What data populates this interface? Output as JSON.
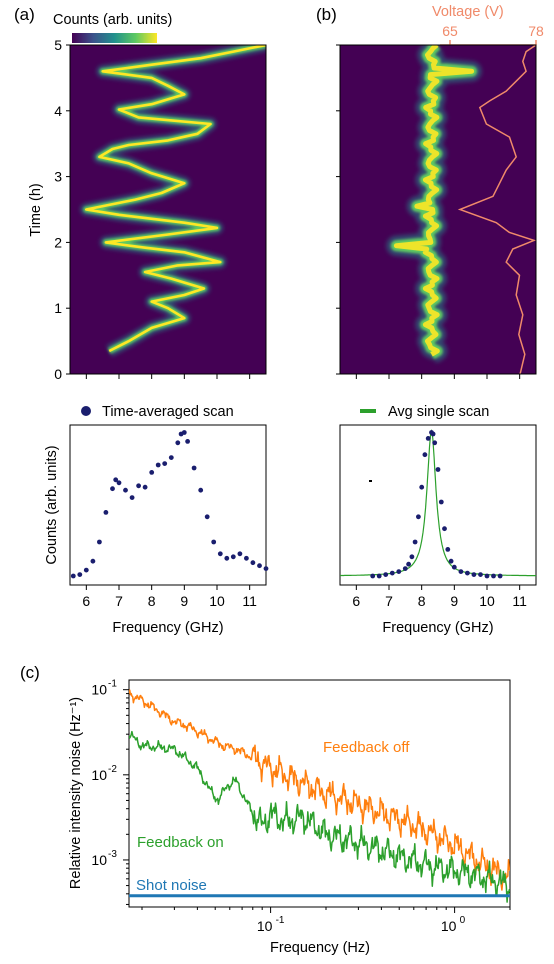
{
  "panels": {
    "a": "(a)",
    "b": "(b)",
    "c": "(c)"
  },
  "colors": {
    "marker": "#1a1e6e",
    "fit": "#2ca02c",
    "voltage": "#f08a6a",
    "feedback_off": "#ff7f0e",
    "feedback_on": "#2ca02c",
    "shot_noise": "#1f77b4",
    "viridis_dark": "#440154",
    "viridis_teal": "#21918c",
    "viridis_green": "#5ec962",
    "viridis_yellow": "#fde725"
  },
  "chart_data": [
    {
      "id": "a-top",
      "type": "heatmap",
      "colorbar_label": "Counts (arb. units)",
      "ylabel": "Time (h)",
      "ylim": [
        0,
        5
      ],
      "yticks": [
        "0",
        "1",
        "2",
        "3",
        "4",
        "5"
      ],
      "xlim": [
        5.5,
        11.5
      ],
      "trace_freq_vs_time": [
        [
          0.35,
          6.7
        ],
        [
          0.5,
          7.3
        ],
        [
          0.7,
          8.0
        ],
        [
          0.85,
          9.0
        ],
        [
          1.0,
          8.5
        ],
        [
          1.1,
          8.0
        ],
        [
          1.2,
          9.0
        ],
        [
          1.3,
          9.6
        ],
        [
          1.45,
          8.6
        ],
        [
          1.55,
          7.8
        ],
        [
          1.65,
          8.8
        ],
        [
          1.7,
          10.1
        ],
        [
          1.85,
          9.0
        ],
        [
          1.92,
          7.8
        ],
        [
          2.0,
          6.6
        ],
        [
          2.12,
          8.5
        ],
        [
          2.22,
          10.0
        ],
        [
          2.3,
          9.0
        ],
        [
          2.42,
          7.0
        ],
        [
          2.5,
          6.0
        ],
        [
          2.65,
          7.5
        ],
        [
          2.75,
          8.3
        ],
        [
          2.9,
          9.0
        ],
        [
          3.05,
          8.0
        ],
        [
          3.2,
          7.3
        ],
        [
          3.3,
          6.4
        ],
        [
          3.42,
          6.8
        ],
        [
          3.48,
          7.3
        ],
        [
          3.55,
          8.5
        ],
        [
          3.65,
          9.4
        ],
        [
          3.8,
          9.8
        ],
        [
          3.9,
          7.6
        ],
        [
          4.02,
          7.0
        ],
        [
          4.1,
          8.0
        ],
        [
          4.25,
          9.0
        ],
        [
          4.38,
          8.5
        ],
        [
          4.5,
          8.0
        ],
        [
          4.6,
          6.5
        ],
        [
          4.7,
          8.0
        ],
        [
          4.8,
          9.5
        ],
        [
          4.9,
          10.5
        ],
        [
          5.0,
          11.5
        ]
      ]
    },
    {
      "id": "a-bottom",
      "type": "scatter",
      "legend": "Time-averaged scan",
      "xlabel": "Frequency (GHz)",
      "ylabel": "Counts (arb. units)",
      "xlim": [
        5.5,
        11.5
      ],
      "ylim": [
        0,
        1
      ],
      "xticks": [
        "6",
        "7",
        "8",
        "9",
        "10",
        "11"
      ],
      "x": [
        5.6,
        5.8,
        6.0,
        6.2,
        6.4,
        6.6,
        6.8,
        6.9,
        7.0,
        7.2,
        7.4,
        7.6,
        7.8,
        8.0,
        8.2,
        8.4,
        8.6,
        8.8,
        8.9,
        9.0,
        9.1,
        9.3,
        9.5,
        9.7,
        9.9,
        10.1,
        10.3,
        10.5,
        10.7,
        10.9,
        11.1,
        11.3,
        11.5
      ],
      "y": [
        0.02,
        0.03,
        0.06,
        0.12,
        0.25,
        0.45,
        0.61,
        0.67,
        0.65,
        0.6,
        0.55,
        0.63,
        0.62,
        0.72,
        0.77,
        0.78,
        0.82,
        0.92,
        0.98,
        0.99,
        0.93,
        0.75,
        0.6,
        0.42,
        0.25,
        0.17,
        0.14,
        0.15,
        0.17,
        0.14,
        0.11,
        0.09,
        0.07
      ]
    },
    {
      "id": "b-top",
      "type": "heatmap",
      "ylim": [
        0,
        5
      ],
      "xlim": [
        5.5,
        11.5
      ],
      "center_freq": 8.3,
      "voltage_axis_label": "Voltage (V)",
      "voltage_ticks": [
        "65",
        "78"
      ],
      "voltage_range": [
        65,
        78
      ],
      "voltage_vs_time": [
        [
          0.0,
          75.6
        ],
        [
          0.3,
          76.3
        ],
        [
          0.6,
          75.4
        ],
        [
          0.9,
          76.0
        ],
        [
          1.2,
          75.0
        ],
        [
          1.5,
          75.5
        ],
        [
          1.7,
          73.5
        ],
        [
          1.9,
          74.5
        ],
        [
          2.03,
          77.7
        ],
        [
          2.15,
          74.0
        ],
        [
          2.3,
          72.0
        ],
        [
          2.5,
          66.5
        ],
        [
          2.7,
          71.5
        ],
        [
          2.9,
          72.5
        ],
        [
          3.1,
          73.5
        ],
        [
          3.3,
          75.0
        ],
        [
          3.6,
          74.0
        ],
        [
          3.8,
          70.5
        ],
        [
          4.05,
          69.5
        ],
        [
          4.15,
          71.0
        ],
        [
          4.3,
          73.5
        ],
        [
          4.45,
          75.0
        ],
        [
          4.6,
          76.5
        ],
        [
          4.75,
          76.0
        ],
        [
          4.9,
          76.5
        ],
        [
          5.0,
          78.0
        ]
      ]
    },
    {
      "id": "b-bottom",
      "type": "scatter",
      "legend": "Avg single scan",
      "xlabel": "Frequency (GHz)",
      "xlim": [
        5.5,
        11.5
      ],
      "ylim": [
        0,
        1
      ],
      "xticks": [
        "6",
        "7",
        "8",
        "9",
        "10",
        "11"
      ],
      "x": [
        6.5,
        6.7,
        6.9,
        7.1,
        7.3,
        7.5,
        7.6,
        7.7,
        7.8,
        7.9,
        8.0,
        8.1,
        8.2,
        8.3,
        8.35,
        8.4,
        8.5,
        8.6,
        8.7,
        8.8,
        8.9,
        9.0,
        9.2,
        9.4,
        9.6,
        9.8,
        10.0,
        10.2,
        10.4
      ],
      "y": [
        0.02,
        0.02,
        0.03,
        0.04,
        0.05,
        0.07,
        0.1,
        0.15,
        0.25,
        0.42,
        0.62,
        0.84,
        0.95,
        0.99,
        0.98,
        0.92,
        0.74,
        0.52,
        0.34,
        0.2,
        0.12,
        0.08,
        0.05,
        0.04,
        0.03,
        0.03,
        0.02,
        0.02,
        0.02
      ],
      "fit_center": 8.3,
      "fit_gamma": 0.17
    },
    {
      "id": "c",
      "type": "line",
      "xlabel": "Frequency (Hz)",
      "ylabel": "Relative intensity noise (Hz⁻¹)",
      "x_log": true,
      "y_log": true,
      "xlim": [
        0.017,
        2
      ],
      "ylim": [
        0.00028,
        0.13
      ],
      "xticks": [
        0.1,
        1
      ],
      "yticks": [
        0.001,
        0.01,
        0.1
      ],
      "series": [
        {
          "name": "Feedback off",
          "points": [
            [
              0.017,
              0.09
            ],
            [
              0.02,
              0.075
            ],
            [
              0.025,
              0.055
            ],
            [
              0.03,
              0.042
            ],
            [
              0.035,
              0.038
            ],
            [
              0.045,
              0.028
            ],
            [
              0.055,
              0.022
            ],
            [
              0.065,
              0.02
            ],
            [
              0.08,
              0.016
            ],
            [
              0.1,
              0.012
            ],
            [
              0.15,
              0.008
            ],
            [
              0.2,
              0.006
            ],
            [
              0.3,
              0.0045
            ],
            [
              0.5,
              0.003
            ],
            [
              0.7,
              0.0022
            ],
            [
              1.0,
              0.0015
            ],
            [
              1.4,
              0.0009
            ],
            [
              2.0,
              0.0006
            ]
          ]
        },
        {
          "name": "Feedback on",
          "points": [
            [
              0.017,
              0.03
            ],
            [
              0.02,
              0.022
            ],
            [
              0.025,
              0.021
            ],
            [
              0.03,
              0.02
            ],
            [
              0.04,
              0.012
            ],
            [
              0.047,
              0.0065
            ],
            [
              0.052,
              0.005
            ],
            [
              0.058,
              0.0075
            ],
            [
              0.065,
              0.0085
            ],
            [
              0.075,
              0.0045
            ],
            [
              0.09,
              0.0025
            ],
            [
              0.1,
              0.0035
            ],
            [
              0.12,
              0.0028
            ],
            [
              0.15,
              0.0032
            ],
            [
              0.2,
              0.002
            ],
            [
              0.3,
              0.0016
            ],
            [
              0.5,
              0.0011
            ],
            [
              0.8,
              0.0008
            ],
            [
              1.2,
              0.0007
            ],
            [
              2.0,
              0.0005
            ]
          ]
        },
        {
          "name": "Shot noise",
          "points": [
            [
              0.017,
              0.00038
            ],
            [
              2.0,
              0.00038
            ]
          ]
        }
      ]
    }
  ]
}
